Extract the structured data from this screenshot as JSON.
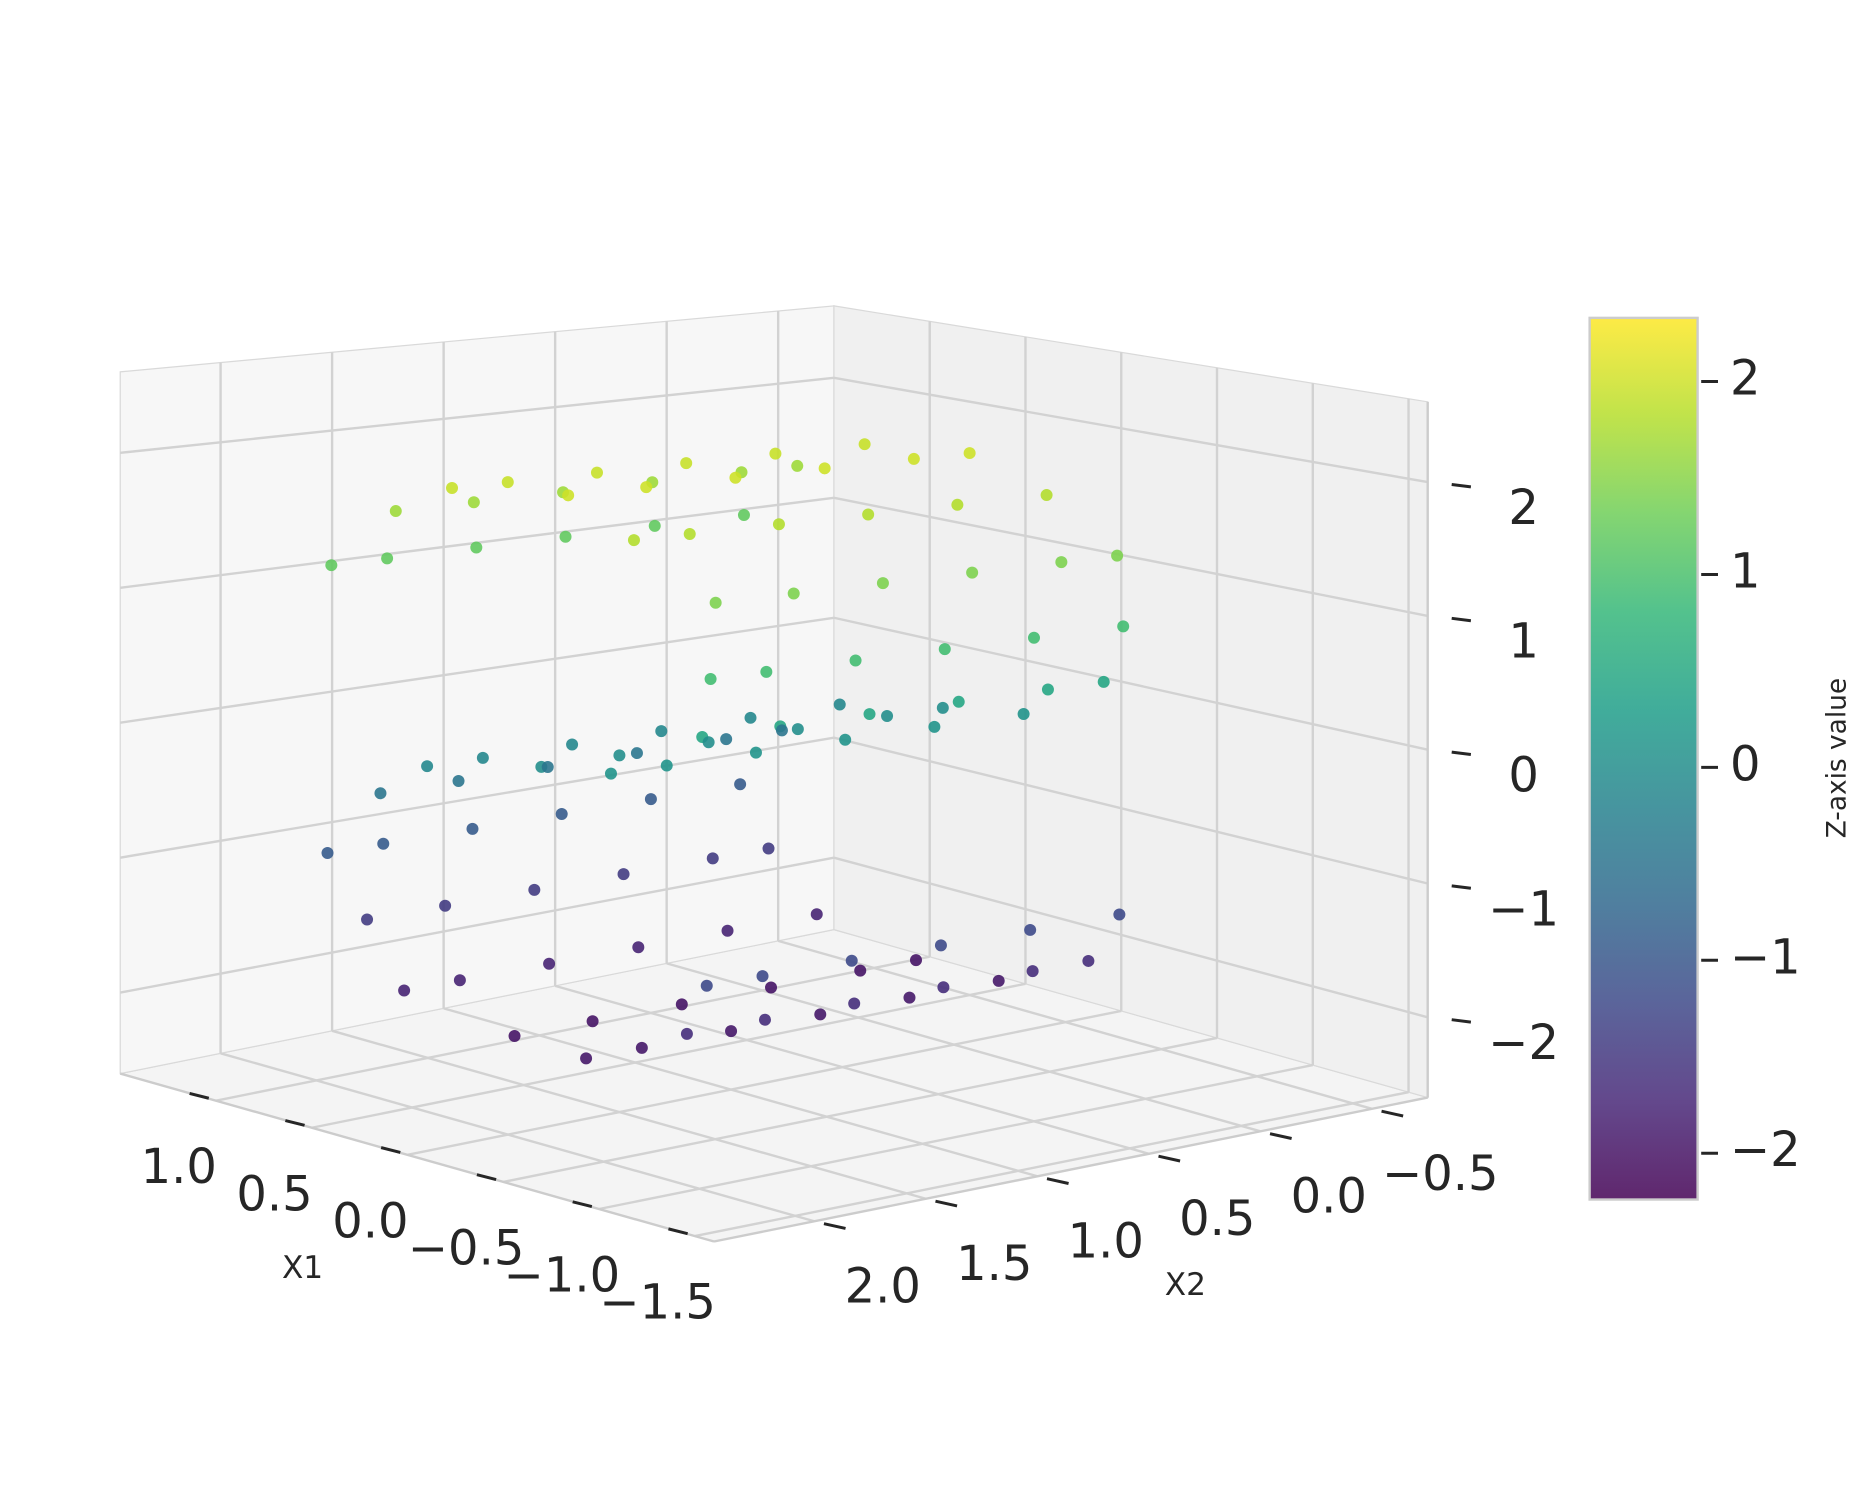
{
  "chart_data": {
    "type": "scatter3d",
    "xlabel": "X1",
    "ylabel": "X2",
    "colorbar_label": "Z-axis value",
    "colormap": "viridis",
    "xlim": [
      -1.6,
      1.5
    ],
    "ylim": [
      -0.75,
      2.45
    ],
    "zlim": [
      -2.6,
      2.6
    ],
    "clim": [
      -2.24,
      2.33
    ],
    "xticks": [
      {
        "value": 1.0,
        "label": "1.0"
      },
      {
        "value": 0.5,
        "label": "0.5"
      },
      {
        "value": 0.0,
        "label": "0.0"
      },
      {
        "value": -0.5,
        "label": "−0.5"
      },
      {
        "value": -1.0,
        "label": "−1.0"
      },
      {
        "value": -1.5,
        "label": "−1.5"
      }
    ],
    "yticks": [
      {
        "value": 2.0,
        "label": "2.0"
      },
      {
        "value": 1.5,
        "label": "1.5"
      },
      {
        "value": 1.0,
        "label": "1.0"
      },
      {
        "value": 0.5,
        "label": "0.5"
      },
      {
        "value": 0.0,
        "label": "0.0"
      },
      {
        "value": -0.5,
        "label": "−0.5"
      }
    ],
    "zticks": [
      {
        "value": -2,
        "label": "−2"
      },
      {
        "value": -1,
        "label": "−1"
      },
      0,
      1,
      2
    ],
    "cticks": [
      {
        "value": -2,
        "label": "−2"
      },
      {
        "value": -1,
        "label": "−1"
      },
      0,
      1,
      2
    ],
    "grid": true,
    "x": [
      0.98,
      0.98,
      0.98,
      0.98,
      0.98,
      0.98,
      0.76,
      0.76,
      0.76,
      0.76,
      0.76,
      0.76,
      0.35,
      0.35,
      0.35,
      0.35,
      0.35,
      0.35,
      -0.14,
      -0.14,
      -0.14,
      -0.14,
      -0.14,
      -0.14,
      -0.6,
      -0.6,
      -0.6,
      -0.6,
      -0.6,
      -0.6,
      -0.91,
      -0.91,
      -0.91,
      -0.91,
      -0.91,
      -0.91,
      -1.0,
      -1.0,
      -1.0,
      -1.0,
      -1.0,
      -1.0,
      -0.84,
      -0.84,
      -0.84,
      -0.84,
      -0.84,
      -0.84,
      -0.48,
      -0.48,
      -0.48,
      -0.48,
      -0.48,
      -0.48,
      0,
      0,
      0,
      0,
      0,
      0,
      0.48,
      0.48,
      0.48,
      0.48,
      0.48,
      0.48,
      0.84,
      0.84,
      0.84,
      0.84,
      0.84,
      0.84,
      1.0,
      1.0,
      1.0,
      1.0,
      1.0,
      1.0,
      0.91,
      0.91,
      0.91,
      0.91,
      0.91,
      0.91,
      0.6,
      0.6,
      0.6,
      0.6,
      0.6,
      0.6,
      0.14,
      0.14,
      0.14,
      0.14,
      0.14,
      0.14,
      -0.35,
      -0.35,
      -0.35,
      -0.35,
      -0.35,
      -0.35,
      -0.76,
      -0.76,
      -0.76,
      -0.76,
      -0.76,
      -0.76,
      -0.98,
      -0.98,
      -0.98,
      -0.98,
      -0.98,
      -0.98
    ],
    "y": [
      0.1,
      0.5,
      0.9,
      1.3,
      1.7,
      1.95,
      0.3,
      0.7,
      1.1,
      1.5,
      1.85,
      0.05,
      0.1,
      0.5,
      0.9,
      1.3,
      1.7,
      1.95,
      0.3,
      0.7,
      1.1,
      1.5,
      1.85,
      0.05,
      0.1,
      0.5,
      0.9,
      1.3,
      1.7,
      1.95,
      0.3,
      0.7,
      1.1,
      1.5,
      1.85,
      0.05,
      0.1,
      0.5,
      0.9,
      1.3,
      1.7,
      1.95,
      0.3,
      0.7,
      1.1,
      1.5,
      1.85,
      0.05,
      0.1,
      0.5,
      0.9,
      1.3,
      1.7,
      1.95,
      0.3,
      0.7,
      1.1,
      1.5,
      1.85,
      0.05,
      0.1,
      0.5,
      0.9,
      1.3,
      1.7,
      1.95,
      0.3,
      0.7,
      1.1,
      1.5,
      1.85,
      0.05,
      0.1,
      0.5,
      0.9,
      1.3,
      1.7,
      1.95,
      0.3,
      0.7,
      1.1,
      1.5,
      1.85,
      0.05,
      0.1,
      0.5,
      0.9,
      1.3,
      1.7,
      1.95,
      0.3,
      0.7,
      1.1,
      1.5,
      1.85,
      0.05,
      0.1,
      0.5,
      0.9,
      1.3,
      1.7,
      1.95,
      0.3,
      0.7,
      1.1,
      1.5,
      1.85,
      0.05,
      0.1,
      0.5,
      0.9,
      1.3,
      1.7,
      1.95
    ],
    "z": [
      1.21,
      1.21,
      1.21,
      1.21,
      1.21,
      1.21,
      1.65,
      1.65,
      1.65,
      1.65,
      1.65,
      1.65,
      1.94,
      1.94,
      1.94,
      1.94,
      1.94,
      1.94,
      1.99,
      1.99,
      1.99,
      1.99,
      1.99,
      1.99,
      1.8,
      1.8,
      1.8,
      1.8,
      1.8,
      1.8,
      1.42,
      1.42,
      1.42,
      1.42,
      1.42,
      1.42,
      0.93,
      0.93,
      0.93,
      0.93,
      0.93,
      0.93,
      0.46,
      0.46,
      0.46,
      0.46,
      0.46,
      0.46,
      0.12,
      0.12,
      0.12,
      0.12,
      0.12,
      0.12,
      0,
      0,
      0,
      0,
      0,
      0,
      -0.12,
      -0.12,
      -0.12,
      -0.12,
      -0.12,
      -0.12,
      -0.46,
      -0.46,
      -0.46,
      -0.46,
      -0.46,
      -0.46,
      -0.93,
      -0.93,
      -0.93,
      -0.93,
      -0.93,
      -0.93,
      -1.42,
      -1.42,
      -1.42,
      -1.42,
      -1.42,
      -1.42,
      -1.8,
      -1.8,
      -1.8,
      -1.8,
      -1.8,
      -1.8,
      -1.99,
      -1.99,
      -1.99,
      -1.99,
      -1.99,
      -1.99,
      -1.94,
      -1.94,
      -1.94,
      -1.94,
      -1.94,
      -1.94,
      -1.65,
      -1.65,
      -1.65,
      -1.65,
      -1.65,
      -1.65,
      -1.21,
      -1.21,
      -1.21,
      -1.21,
      -1.21,
      -1.21
    ]
  }
}
